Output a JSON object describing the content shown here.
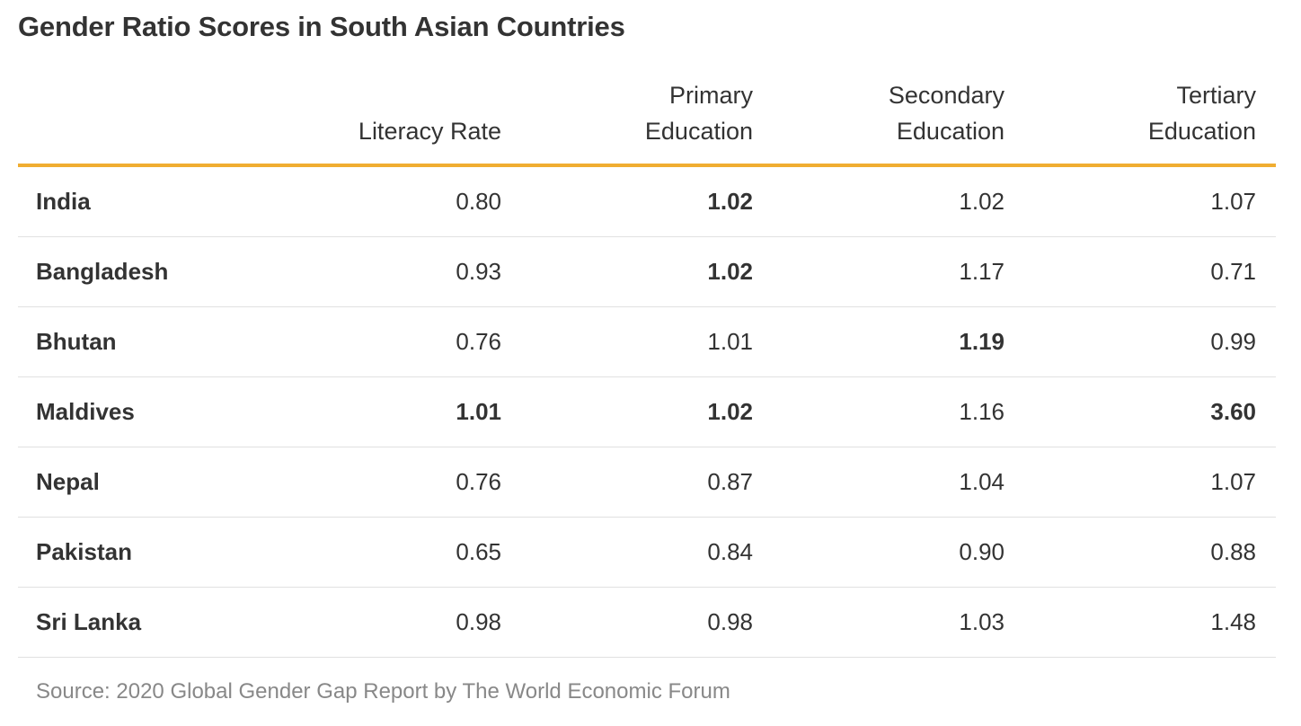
{
  "chart_data": {
    "type": "table",
    "title": "Gender Ratio Scores in South Asian Countries",
    "columns": [
      [
        "Literacy Rate"
      ],
      [
        "Primary",
        "Education"
      ],
      [
        "Secondary",
        "Education"
      ],
      [
        "Tertiary",
        "Education"
      ]
    ],
    "rows": [
      {
        "country": "India",
        "values": [
          "0.80",
          "1.02",
          "1.02",
          "1.07"
        ],
        "bold": [
          false,
          true,
          false,
          false
        ]
      },
      {
        "country": "Bangladesh",
        "values": [
          "0.93",
          "1.02",
          "1.17",
          "0.71"
        ],
        "bold": [
          false,
          true,
          false,
          false
        ]
      },
      {
        "country": "Bhutan",
        "values": [
          "0.76",
          "1.01",
          "1.19",
          "0.99"
        ],
        "bold": [
          false,
          false,
          true,
          false
        ]
      },
      {
        "country": "Maldives",
        "values": [
          "1.01",
          "1.02",
          "1.16",
          "3.60"
        ],
        "bold": [
          true,
          true,
          false,
          true
        ]
      },
      {
        "country": "Nepal",
        "values": [
          "0.76",
          "0.87",
          "1.04",
          "1.07"
        ],
        "bold": [
          false,
          false,
          false,
          false
        ]
      },
      {
        "country": "Pakistan",
        "values": [
          "0.65",
          "0.84",
          "0.90",
          "0.88"
        ],
        "bold": [
          false,
          false,
          false,
          false
        ]
      },
      {
        "country": "Sri Lanka",
        "values": [
          "0.98",
          "0.98",
          "1.03",
          "1.48"
        ],
        "bold": [
          false,
          false,
          false,
          false
        ]
      }
    ],
    "source": "Source: 2020 Global Gender Gap Report by The World Economic Forum",
    "colors": {
      "header_rule": "#f0ad31",
      "row_rule": "#e1e1e1",
      "text": "#333333",
      "source_text": "#888888"
    }
  }
}
